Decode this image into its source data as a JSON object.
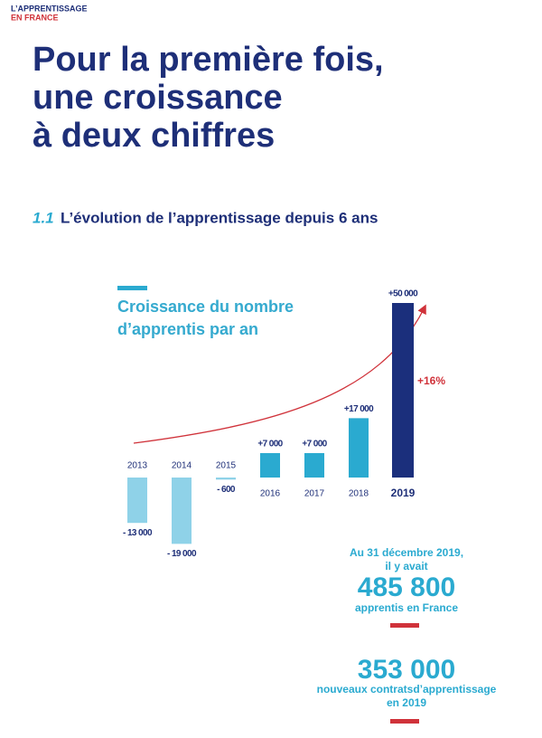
{
  "header": {
    "line1": "L’APPRENTISSAGE",
    "line2": "EN FRANCE"
  },
  "title": [
    "Pour la première fois,",
    "une croissance",
    "à deux chiffres"
  ],
  "section": {
    "number": "1.1",
    "text": "L’évolution de l’apprentissage depuis 6 ans"
  },
  "chart_data": {
    "type": "bar",
    "title": [
      "Croissance du nombre",
      "d’apprentis par an"
    ],
    "categories": [
      "2013",
      "2014",
      "2015",
      "2016",
      "2017",
      "2018",
      "2019"
    ],
    "values": [
      -13000,
      -19000,
      -600,
      7000,
      7000,
      17000,
      50000
    ],
    "value_labels": [
      "- 13 000",
      "- 19 000",
      "- 600",
      "+7 000",
      "+7 000",
      "+17 000",
      "+50 000"
    ],
    "colors": [
      "#8fd2e8",
      "#8fd2e8",
      "#8fd2e8",
      "#2aaad0",
      "#2aaad0",
      "#2aaad0",
      "#1b2f7c"
    ],
    "annotation": "+16%"
  },
  "stats": {
    "intro": [
      "Au 31 décembre 2019,",
      "il y avait"
    ],
    "apprentices": "485 800",
    "apprentices_label": "apprentis en France",
    "contracts": "353 000",
    "contracts_label": [
      "nouveaux contratsd’apprentissage",
      "en 2019"
    ]
  }
}
